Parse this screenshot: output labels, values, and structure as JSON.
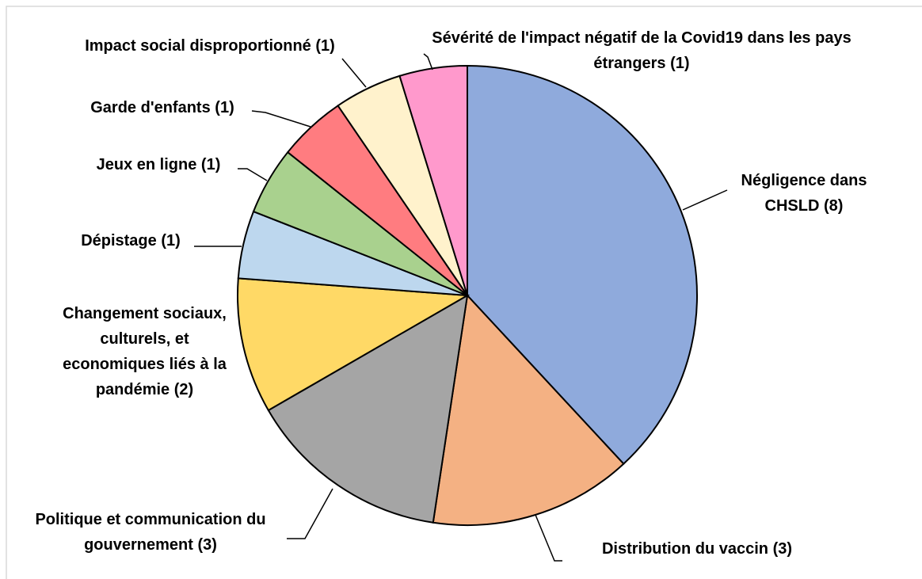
{
  "chart_data": {
    "type": "pie",
    "categories": [
      "Négligence dans CHSLD",
      "Distribution du vaccin",
      "Politique et communication du gouvernement",
      "Changement sociaux, culturels, et economiques liés à la pandémie",
      "Dépistage",
      "Jeux en ligne",
      "Garde d'enfants",
      "Impact social disproportionné",
      "Sévérité de l'impact négatif de la Covid19 dans les pays étrangers"
    ],
    "values": [
      8,
      3,
      3,
      2,
      1,
      1,
      1,
      1,
      1
    ],
    "value_labels": [
      "(8)",
      "(3)",
      "(3)",
      "(2)",
      "(1)",
      "(1)",
      "(1)",
      "(1)",
      "(1)"
    ],
    "colors": [
      "#8faadc",
      "#f4b183",
      "#a5a5a5",
      "#ffd966",
      "#bdd7ee",
      "#a9d18e",
      "#ff7c80",
      "#fff2cc",
      "#ff99cc"
    ]
  }
}
